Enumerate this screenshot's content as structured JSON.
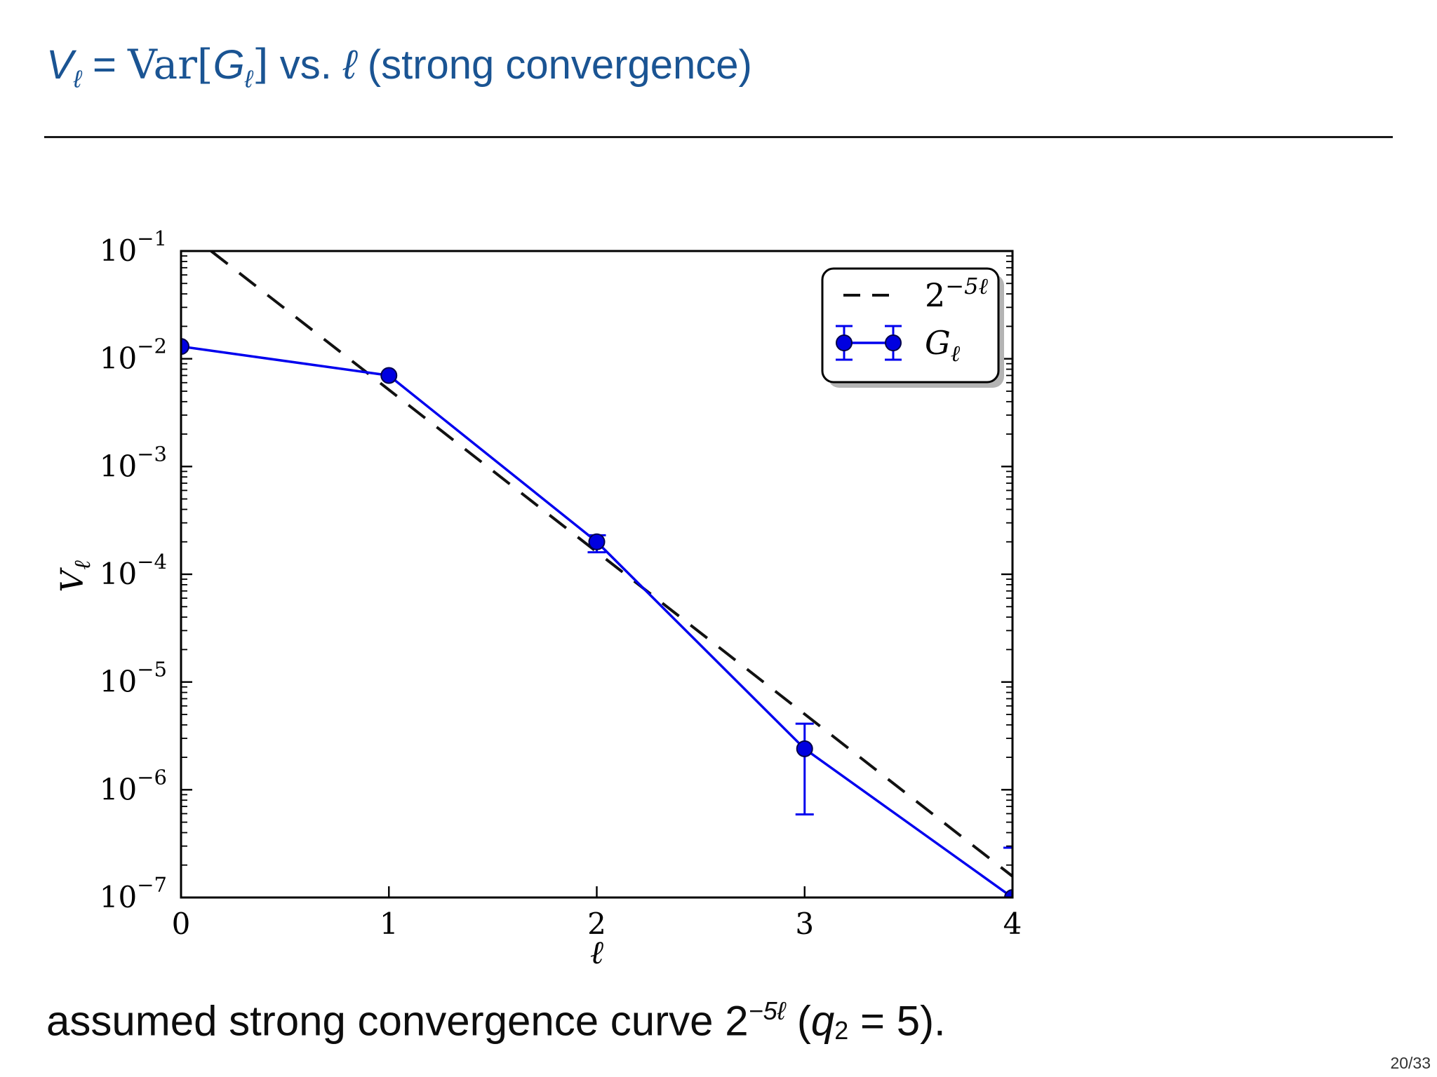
{
  "slide": {
    "title": {
      "v": "V",
      "v_sub": "ℓ",
      "eq": " = ",
      "var_op": "Var",
      "lbracket": "[",
      "g": "G",
      "g_sub": "ℓ",
      "rbracket": "]",
      "vs": " vs. ",
      "ell": "ℓ",
      "tail": " (strong convergence)"
    },
    "caption": {
      "lead": "assumed strong convergence curve ",
      "base": "2",
      "sup": "−5ℓ",
      "open": " (",
      "q": "q",
      "q_sub": "2",
      "eq": " = 5",
      "close": ")."
    },
    "page_number": "20/33"
  },
  "colors": {
    "title_blue": "#1a5493",
    "series_blue": "#0000ee",
    "reference_black": "#111111",
    "background": "#ffffff"
  },
  "chart_data": {
    "type": "line",
    "title": "",
    "xlabel": "ℓ",
    "ylabel": "Vℓ",
    "ylabel_base": "V",
    "ylabel_sub": "ℓ",
    "axes_scale": {
      "x": "linear",
      "y": "log"
    },
    "grid": false,
    "xlim": [
      0,
      4
    ],
    "ylim": [
      1e-07,
      0.1
    ],
    "x_ticks": [
      0,
      1,
      2,
      3,
      4
    ],
    "y_tick_exponents": [
      -1,
      -2,
      -3,
      -4,
      -5,
      -6,
      -7
    ],
    "series": [
      {
        "name": "Gℓ",
        "x": [
          0,
          1,
          2,
          3,
          4
        ],
        "y": [
          0.013,
          0.007,
          0.0002,
          2.4e-06,
          1e-07
        ],
        "err_low": [
          null,
          null,
          0.00016,
          5.9e-07,
          8e-08
        ],
        "err_high": [
          null,
          null,
          0.00023,
          4.1e-06,
          2.9e-07
        ],
        "color": "#0000ee",
        "marker": "circle",
        "marker_fill": "#0000e0",
        "marker_edge": "#00004a"
      }
    ],
    "reference_line": {
      "name": "2^−5ℓ",
      "style": "dashed",
      "color": "#111111",
      "rate_per_level": "2^-5",
      "scale": 0.165,
      "value_at_l0": 0.165,
      "value_at_l4": 1.57e-07
    },
    "legend": {
      "position": "upper right",
      "entries": [
        {
          "base": "2",
          "sup": "−5ℓ",
          "type": "dashed-line"
        },
        {
          "base": "G",
          "sub": "ℓ",
          "type": "errorbar-series"
        }
      ]
    }
  }
}
